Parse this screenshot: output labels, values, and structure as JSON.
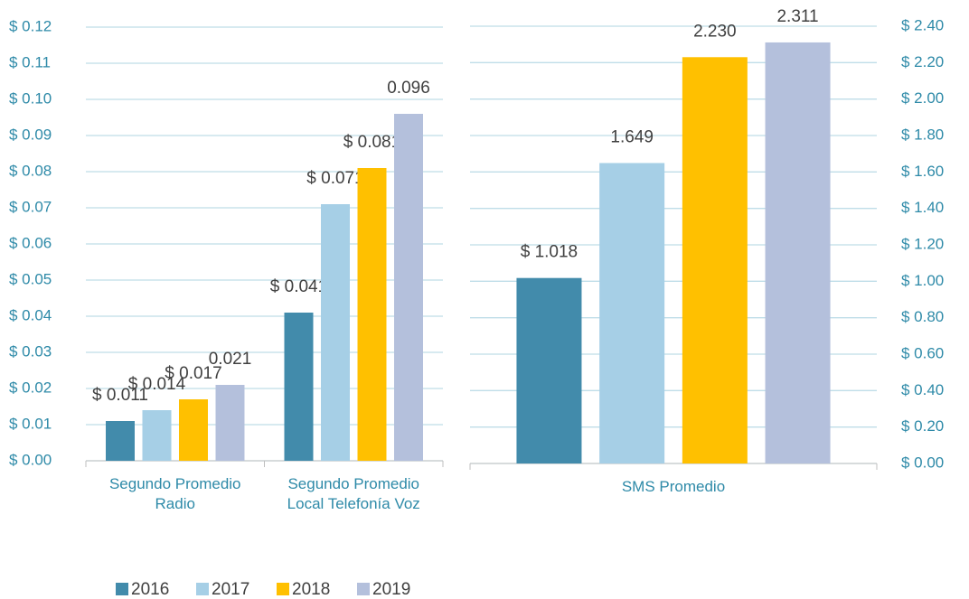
{
  "chart_data": [
    {
      "type": "bar",
      "categories": [
        "Segundo  Promedio\nRadio",
        "Segundo  Promedio\nLocal Telefonía Voz"
      ],
      "series": [
        {
          "name": "2016",
          "color": "#428bab",
          "values": [
            0.011,
            0.041
          ],
          "value_labels": [
            "$ 0.011",
            "$ 0.041"
          ]
        },
        {
          "name": "2017",
          "color": "#a6cfe6",
          "values": [
            0.014,
            0.071
          ],
          "value_labels": [
            "$ 0.014",
            "$ 0.071"
          ]
        },
        {
          "name": "2018",
          "color": "#ffc000",
          "values": [
            0.017,
            0.081
          ],
          "value_labels": [
            "$ 0.017",
            "$ 0.081"
          ]
        },
        {
          "name": "2019",
          "color": "#b4c0dc",
          "values": [
            0.021,
            0.096
          ],
          "value_labels": [
            "0.021",
            "0.096"
          ]
        }
      ],
      "ylim": [
        0,
        0.12
      ],
      "yticks": [
        {
          "value": 0,
          "label": "$ 0.00"
        },
        {
          "value": 0.01,
          "label": "$ 0.01"
        },
        {
          "value": 0.02,
          "label": "$ 0.02"
        },
        {
          "value": 0.03,
          "label": "$ 0.03"
        },
        {
          "value": 0.04,
          "label": "$ 0.04"
        },
        {
          "value": 0.05,
          "label": "$ 0.05"
        },
        {
          "value": 0.06,
          "label": "$ 0.06"
        },
        {
          "value": 0.07,
          "label": "$ 0.07"
        },
        {
          "value": 0.08,
          "label": "$ 0.08"
        },
        {
          "value": 0.09,
          "label": "$ 0.09"
        },
        {
          "value": 0.1,
          "label": "$ 0.10"
        },
        {
          "value": 0.11,
          "label": "$ 0.11"
        },
        {
          "value": 0.12,
          "label": "$ 0.12"
        }
      ],
      "y_axis_position": "left",
      "grid": true,
      "legend": "bottom"
    },
    {
      "type": "bar",
      "categories": [
        "SMS Promedio"
      ],
      "series": [
        {
          "color": "#428bab",
          "values": [
            1.018
          ],
          "value_labels": [
            "$ 1.018"
          ]
        },
        {
          "color": "#a6cfe6",
          "values": [
            1.649
          ],
          "value_labels": [
            "1.649"
          ]
        },
        {
          "color": "#ffc000",
          "values": [
            2.23
          ],
          "value_labels": [
            "2.230"
          ]
        },
        {
          "color": "#b4c0dc",
          "values": [
            2.311
          ],
          "value_labels": [
            "2.311"
          ]
        }
      ],
      "ylim": [
        0,
        2.4
      ],
      "yticks": [
        {
          "value": 0,
          "label": "$ 0.00"
        },
        {
          "value": 0.2,
          "label": "$ 0.20"
        },
        {
          "value": 0.4,
          "label": "$ 0.40"
        },
        {
          "value": 0.6,
          "label": "$ 0.60"
        },
        {
          "value": 0.8,
          "label": "$ 0.80"
        },
        {
          "value": 1,
          "label": "$ 1.00"
        },
        {
          "value": 1.2,
          "label": "$ 1.20"
        },
        {
          "value": 1.4,
          "label": "$ 1.40"
        },
        {
          "value": 1.6,
          "label": "$ 1.60"
        },
        {
          "value": 1.8,
          "label": "$ 1.80"
        },
        {
          "value": 2,
          "label": "$ 2.00"
        },
        {
          "value": 2.2,
          "label": "$ 2.20"
        },
        {
          "value": 2.4,
          "label": "$ 2.40"
        }
      ],
      "y_axis_position": "right",
      "grid": true
    }
  ]
}
